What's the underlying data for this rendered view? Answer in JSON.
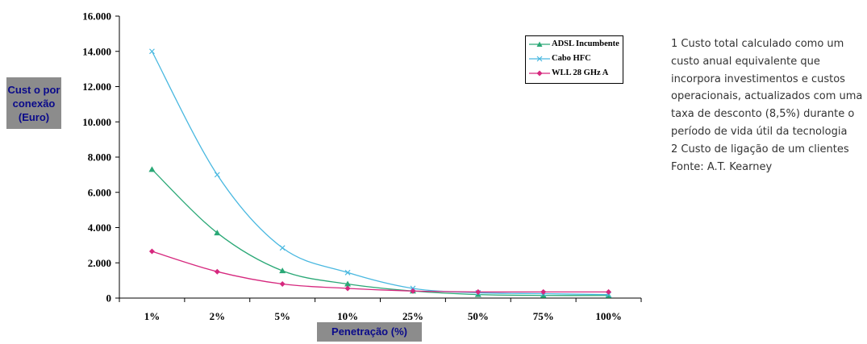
{
  "chart_data": {
    "type": "line",
    "categories": [
      "1%",
      "2%",
      "5%",
      "10%",
      "25%",
      "50%",
      "75%",
      "100%"
    ],
    "ylim": [
      0,
      16000
    ],
    "yticks": [
      "0",
      "2.000",
      "4.000",
      "6.000",
      "8.000",
      "10.000",
      "12.000",
      "14.000",
      "16.000"
    ],
    "ytick_values": [
      0,
      2000,
      4000,
      6000,
      8000,
      10000,
      12000,
      14000,
      16000
    ],
    "ylabel": "Cust o por\nconexão\n(Euro)",
    "xlabel": "Penetração (%)",
    "legend_position": "top-right",
    "series": [
      {
        "name": "ADSL Incumbente",
        "color": "#2aa876",
        "marker": "triangle",
        "values": [
          7300,
          3700,
          1550,
          800,
          400,
          200,
          150,
          150
        ]
      },
      {
        "name": "Cabo HFC",
        "color": "#49b8e0",
        "marker": "x",
        "values": [
          14000,
          7000,
          2850,
          1450,
          550,
          300,
          250,
          200
        ]
      },
      {
        "name": "WLL 28 GHz A",
        "color": "#d6287e",
        "marker": "diamond",
        "values": [
          2650,
          1500,
          800,
          550,
          400,
          350,
          350,
          350
        ]
      }
    ]
  },
  "notes": [
    "1 Custo total calculado como um custo anual equivalente que incorpora investimentos e custos operacionais, actualizados com uma taxa de desconto (8,5%) durante o período de vida útil da tecnologia",
    "2 Custo de ligação de um clientes",
    "Fonte:  A.T. Kearney"
  ]
}
